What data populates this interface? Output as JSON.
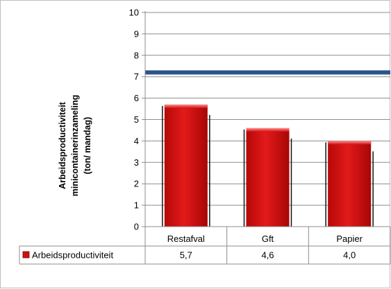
{
  "chart_data": {
    "type": "bar",
    "categories": [
      "Restafval",
      "Gft",
      "Papier"
    ],
    "series": [
      {
        "name": "Arbeidsproductiviteit",
        "values": [
          5.7,
          4.6,
          4.0
        ],
        "labels": [
          "5,7",
          "4,6",
          "4,0"
        ],
        "color": "#cc1111"
      }
    ],
    "reference_line": {
      "value": 7.2,
      "color": "#2b5489"
    },
    "ylabel_lines": [
      "Arbeidsproductiviteit",
      "minicontainerinzameling",
      "(ton/ mandag)"
    ],
    "ylim": [
      0,
      10
    ],
    "yticks": [
      "0",
      "1",
      "2",
      "3",
      "4",
      "5",
      "6",
      "7",
      "8",
      "9",
      "10"
    ],
    "grid": true,
    "legend": "data-table-left"
  }
}
